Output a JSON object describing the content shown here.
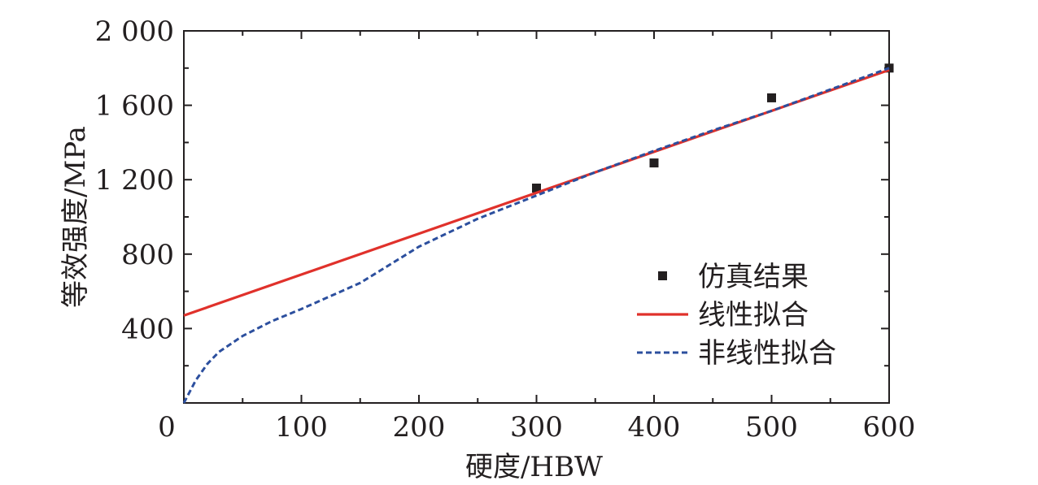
{
  "chart_data": {
    "type": "line",
    "xlabel": "硬度/HBW",
    "ylabel": "等效强度/MPa",
    "xlim": [
      0,
      600
    ],
    "ylim": [
      0,
      2000
    ],
    "x_ticks": [
      0,
      100,
      200,
      300,
      400,
      500,
      600
    ],
    "x_tick_labels": [
      "0",
      "100",
      "200",
      "300",
      "400",
      "500",
      "600"
    ],
    "y_ticks": [
      400,
      800,
      1200,
      1600,
      2000
    ],
    "y_tick_labels": [
      "400",
      "800",
      "1 200",
      "1 600",
      "2 000"
    ],
    "grid": false,
    "legend_position": "center-right",
    "series": [
      {
        "name": "仿真结果",
        "kind": "scatter",
        "color": "#231f20",
        "x": [
          300,
          400,
          500,
          600
        ],
        "y": [
          1155,
          1290,
          1640,
          1800
        ]
      },
      {
        "name": "线性拟合",
        "kind": "line",
        "color": "#e0312b",
        "x": [
          0,
          600
        ],
        "y": [
          470,
          1790
        ]
      },
      {
        "name": "非线性拟合",
        "kind": "dashed-line",
        "color": "#2c4f9e",
        "x": [
          0,
          10,
          20,
          30,
          50,
          75,
          100,
          150,
          200,
          250,
          300,
          350,
          400,
          450,
          500,
          550,
          600
        ],
        "y": [
          0,
          120,
          210,
          275,
          360,
          440,
          505,
          645,
          840,
          990,
          1115,
          1240,
          1355,
          1465,
          1570,
          1685,
          1800
        ]
      }
    ]
  }
}
